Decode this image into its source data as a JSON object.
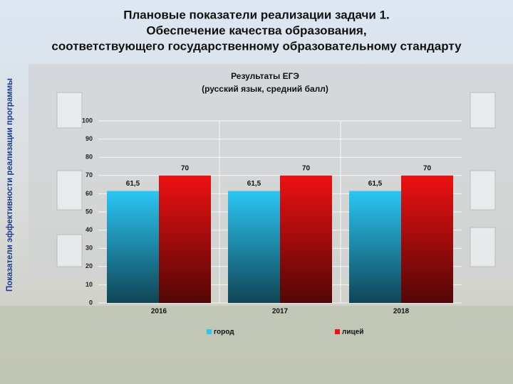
{
  "chart_data": {
    "type": "bar",
    "side_label": "Показатели эффективности реализации программы",
    "title": [
      "Плановые показатели реализации задачи 1.",
      "Обеспечение качества образования,",
      "соответствующего государственному образовательному стандарту"
    ],
    "subtitle": [
      "Результаты ЕГЭ",
      "(русский язык, средний балл)"
    ],
    "categories": [
      "2016",
      "2017",
      "2018"
    ],
    "series": [
      {
        "name": "город",
        "color": "#2bc6f4",
        "values": [
          61.5,
          61.5,
          61.5
        ],
        "value_labels": [
          "61,5",
          "61,5",
          "61,5"
        ]
      },
      {
        "name": "лицей",
        "color": "#ee1111",
        "values": [
          70,
          70,
          70
        ]
      }
    ],
    "ylim": [
      0,
      100
    ],
    "yticks": [
      0,
      10,
      20,
      30,
      40,
      50,
      60,
      70,
      80,
      90,
      100
    ],
    "grid": true,
    "legend": "bottom"
  }
}
